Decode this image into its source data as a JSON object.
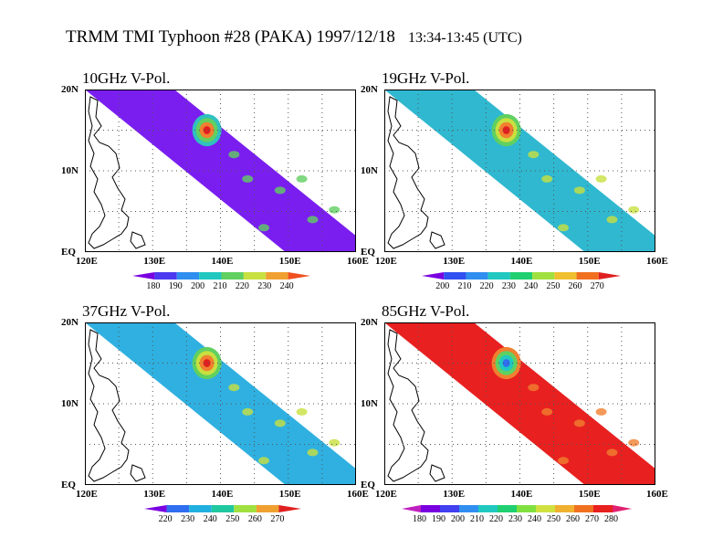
{
  "header": {
    "title": "TRMM TMI  Typhoon #28 (PAKA)  1997/12/18",
    "time": "13:34-13:45 (UTC)"
  },
  "axes": {
    "lat_labels": [
      "20N",
      "10N",
      "EQ"
    ],
    "lon_labels": [
      "120E",
      "130E",
      "140E",
      "150E",
      "160E"
    ]
  },
  "panels": [
    {
      "title": "10GHz V-Pol.",
      "scale_labels": [
        "180",
        "190",
        "200",
        "210",
        "220",
        "230",
        "240"
      ],
      "scale_colors": [
        "#7a00e0",
        "#4b3af0",
        "#2f8ef0",
        "#20c8c0",
        "#60d060",
        "#c8e040",
        "#f0a030",
        "#f05020"
      ],
      "swath_color": "#7a1ef0",
      "accent_colors": [
        "#30c0c0",
        "#60d060",
        "#f08030",
        "#e02020"
      ]
    },
    {
      "title": "19GHz V-Pol.",
      "scale_labels": [
        "200",
        "210",
        "220",
        "230",
        "240",
        "250",
        "260",
        "270"
      ],
      "scale_colors": [
        "#7a00e0",
        "#3050f0",
        "#2f8ef0",
        "#20c8c0",
        "#20d070",
        "#a0e040",
        "#f0c030",
        "#f07020",
        "#e02020"
      ],
      "swath_color": "#2fb8d0",
      "accent_colors": [
        "#60d060",
        "#c8e040",
        "#f08030",
        "#e02020"
      ]
    },
    {
      "title": "37GHz V-Pol.",
      "scale_labels": [
        "220",
        "230",
        "240",
        "250",
        "260",
        "270"
      ],
      "scale_colors": [
        "#7a00e0",
        "#2f6ef0",
        "#20b0e0",
        "#20c8a0",
        "#a0e040",
        "#f0a030",
        "#e02020"
      ],
      "swath_color": "#2fb0e0",
      "accent_colors": [
        "#60d060",
        "#c8e040",
        "#f08030",
        "#e02020"
      ]
    },
    {
      "title": "85GHz V-Pol.",
      "scale_labels": [
        "180",
        "190",
        "200",
        "210",
        "220",
        "230",
        "240",
        "250",
        "260",
        "270",
        "280"
      ],
      "scale_colors": [
        "#c020c0",
        "#7a00e0",
        "#4040f0",
        "#2f8ef0",
        "#20c8c0",
        "#20d070",
        "#80e040",
        "#d0e040",
        "#f0b030",
        "#f07020",
        "#e82020",
        "#e02070"
      ],
      "swath_color": "#e82020",
      "accent_colors": [
        "#f08030",
        "#60d060",
        "#20c8c0",
        "#2f6ef0"
      ]
    }
  ]
}
